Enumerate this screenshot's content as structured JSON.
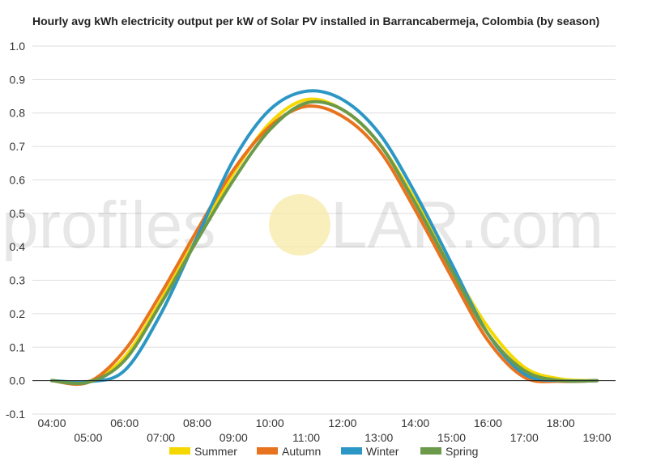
{
  "chart_data": {
    "type": "line",
    "title": "Hourly avg kWh electricity output per kW of Solar PV installed in Barrancabermeja, Colombia (by season)",
    "xlabel": "",
    "ylabel": "",
    "ylim": [
      -0.1,
      1.0
    ],
    "yticks": [
      "-0.1",
      "0.0",
      "0.1",
      "0.2",
      "0.3",
      "0.4",
      "0.5",
      "0.6",
      "0.7",
      "0.8",
      "0.9",
      "1.0"
    ],
    "x": [
      "04:00",
      "05:00",
      "06:00",
      "07:00",
      "08:00",
      "09:00",
      "10:00",
      "11:00",
      "12:00",
      "13:00",
      "14:00",
      "15:00",
      "16:00",
      "17:00",
      "18:00",
      "19:00"
    ],
    "grid": true,
    "legend_position": "bottom",
    "series": [
      {
        "name": "Summer",
        "color": "#f5d800",
        "values": [
          0.0,
          -0.003,
          0.07,
          0.24,
          0.43,
          0.62,
          0.77,
          0.84,
          0.81,
          0.71,
          0.54,
          0.34,
          0.16,
          0.04,
          0.005,
          0.0
        ]
      },
      {
        "name": "Autumn",
        "color": "#e8731e",
        "values": [
          0.0,
          -0.005,
          0.09,
          0.26,
          0.45,
          0.63,
          0.76,
          0.82,
          0.79,
          0.69,
          0.51,
          0.31,
          0.12,
          0.01,
          -0.002,
          0.0
        ]
      },
      {
        "name": "Winter",
        "color": "#2c97c4",
        "values": [
          0.0,
          -0.003,
          0.03,
          0.2,
          0.43,
          0.66,
          0.81,
          0.865,
          0.84,
          0.74,
          0.56,
          0.35,
          0.14,
          0.02,
          0.0,
          0.0
        ]
      },
      {
        "name": "Spring",
        "color": "#6c9a4b",
        "values": [
          0.0,
          -0.005,
          0.06,
          0.23,
          0.42,
          0.6,
          0.75,
          0.83,
          0.81,
          0.71,
          0.53,
          0.33,
          0.14,
          0.03,
          0.0,
          0.0
        ]
      }
    ]
  },
  "watermark": {
    "part1": "profiles",
    "part2": "LAR.com"
  }
}
